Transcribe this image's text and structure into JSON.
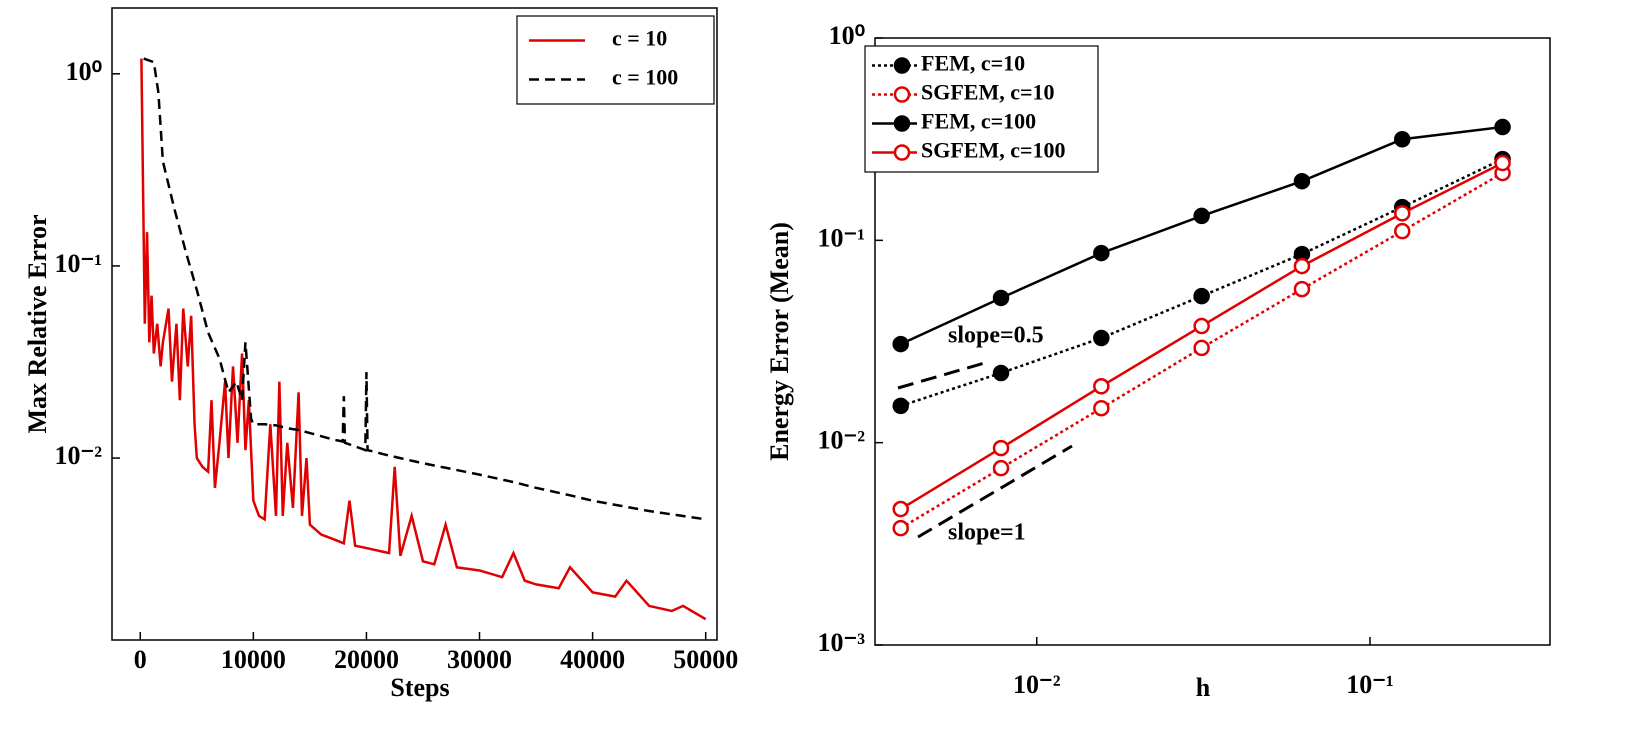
{
  "chart_data": [
    {
      "type": "line",
      "xlabel": "Steps",
      "ylabel": "Max Relative Error",
      "ylog": true,
      "legend": "upper right",
      "xlim": [
        -2500,
        51000
      ],
      "ylim": [
        0.00113,
        2.2
      ],
      "xticks": [
        0,
        10000,
        20000,
        30000,
        40000,
        50000
      ],
      "yticks": [
        {
          "value": 1,
          "label": "10⁰"
        },
        {
          "value": 0.1,
          "label": "10⁻¹"
        },
        {
          "value": 0.01,
          "label": "10⁻²"
        }
      ],
      "series": [
        {
          "name": "c = 10",
          "color": "#e00000",
          "dash": "solid",
          "x": [
            100,
            400,
            600,
            800,
            1000,
            1200,
            1500,
            1800,
            2000,
            2500,
            2800,
            3200,
            3500,
            3800,
            4200,
            4500,
            4800,
            5000,
            5500,
            6000,
            6300,
            6600,
            7000,
            7500,
            7800,
            8200,
            8600,
            9000,
            9300,
            9600,
            10000,
            10500,
            11000,
            11500,
            12000,
            12300,
            12600,
            13000,
            13500,
            14000,
            14300,
            14700,
            15000,
            16000,
            17000,
            18000,
            18500,
            19000,
            20000,
            21000,
            22000,
            22500,
            23000,
            24000,
            25000,
            26000,
            27000,
            28000,
            30000,
            32000,
            33000,
            34000,
            35000,
            37000,
            38000,
            40000,
            42000,
            43000,
            45000,
            47000,
            48000,
            50000
          ],
          "values": [
            1.2,
            0.05,
            0.15,
            0.04,
            0.07,
            0.035,
            0.05,
            0.03,
            0.04,
            0.06,
            0.025,
            0.05,
            0.02,
            0.06,
            0.03,
            0.055,
            0.015,
            0.01,
            0.009,
            0.0085,
            0.02,
            0.007,
            0.012,
            0.025,
            0.01,
            0.03,
            0.012,
            0.035,
            0.011,
            0.02,
            0.006,
            0.005,
            0.0048,
            0.015,
            0.005,
            0.025,
            0.005,
            0.012,
            0.0055,
            0.022,
            0.005,
            0.01,
            0.0045,
            0.004,
            0.0038,
            0.0036,
            0.006,
            0.0035,
            0.0034,
            0.0033,
            0.0032,
            0.009,
            0.0031,
            0.005,
            0.0029,
            0.0028,
            0.0045,
            0.0027,
            0.0026,
            0.0024,
            0.0032,
            0.0023,
            0.0022,
            0.0021,
            0.0027,
            0.002,
            0.0019,
            0.0023,
            0.0017,
            0.0016,
            0.0017,
            0.00145
          ]
        },
        {
          "name": "c = 100",
          "color": "#000000",
          "dash": "dashed",
          "x": [
            300,
            1200,
            1600,
            2000,
            3000,
            4000,
            5000,
            6000,
            7000,
            7800,
            8500,
            9000,
            9300,
            9800,
            10000,
            11000,
            12000,
            13000,
            14000,
            15000,
            16000,
            17000,
            17900,
            18000,
            18100,
            19000,
            19900,
            20000,
            20100,
            22000,
            25000,
            27000,
            30000,
            33000,
            35000,
            38000,
            40000,
            45000,
            50000
          ],
          "values": [
            1.2,
            1.15,
            0.8,
            0.35,
            0.2,
            0.12,
            0.075,
            0.045,
            0.033,
            0.022,
            0.025,
            0.02,
            0.04,
            0.016,
            0.015,
            0.015,
            0.0148,
            0.0143,
            0.014,
            0.0135,
            0.013,
            0.0125,
            0.0122,
            0.021,
            0.012,
            0.0115,
            0.011,
            0.028,
            0.011,
            0.0103,
            0.0094,
            0.0089,
            0.0082,
            0.0075,
            0.007,
            0.0064,
            0.006,
            0.0053,
            0.0048
          ]
        }
      ]
    },
    {
      "type": "line",
      "xlabel": "h",
      "ylabel": "Energy Error (Mean)",
      "xlog": true,
      "ylog": true,
      "legend": "upper left",
      "xlim": [
        0.00327,
        0.347
      ],
      "ylim": [
        0.001,
        1
      ],
      "xticks": [
        {
          "value": 0.01,
          "label": "10⁻²"
        },
        {
          "value": 0.1,
          "label": "10⁻¹"
        }
      ],
      "yticks": [
        {
          "value": 1,
          "label": "10⁰"
        },
        {
          "value": 0.1,
          "label": "10⁻¹"
        },
        {
          "value": 0.01,
          "label": "10⁻²"
        },
        {
          "value": 0.001,
          "label": "10⁻³"
        }
      ],
      "x": [
        0.00390625,
        0.0078125,
        0.015625,
        0.03125,
        0.0625,
        0.125,
        0.25
      ],
      "annotations": [
        "slope=0.5",
        "slope=1"
      ],
      "series": [
        {
          "name": "FEM, c=10",
          "color": "#000000",
          "dash": "dotted",
          "marker": "filled",
          "values": [
            0.0152,
            0.0221,
            0.0329,
            0.053,
            0.0855,
            0.146,
            0.252
          ]
        },
        {
          "name": "SGFEM, c=10",
          "color": "#e00000",
          "dash": "dotted",
          "marker": "open",
          "values": [
            0.00378,
            0.00748,
            0.0148,
            0.0294,
            0.0574,
            0.111,
            0.215
          ]
        },
        {
          "name": "FEM, c=100",
          "color": "#000000",
          "dash": "solid",
          "marker": "filled",
          "values": [
            0.0307,
            0.0519,
            0.0865,
            0.132,
            0.196,
            0.316,
            0.363
          ]
        },
        {
          "name": "SGFEM, c=100",
          "color": "#e00000",
          "dash": "solid",
          "marker": "open",
          "values": [
            0.0047,
            0.0094,
            0.019,
            0.0377,
            0.0746,
            0.136,
            0.241
          ]
        }
      ]
    }
  ]
}
